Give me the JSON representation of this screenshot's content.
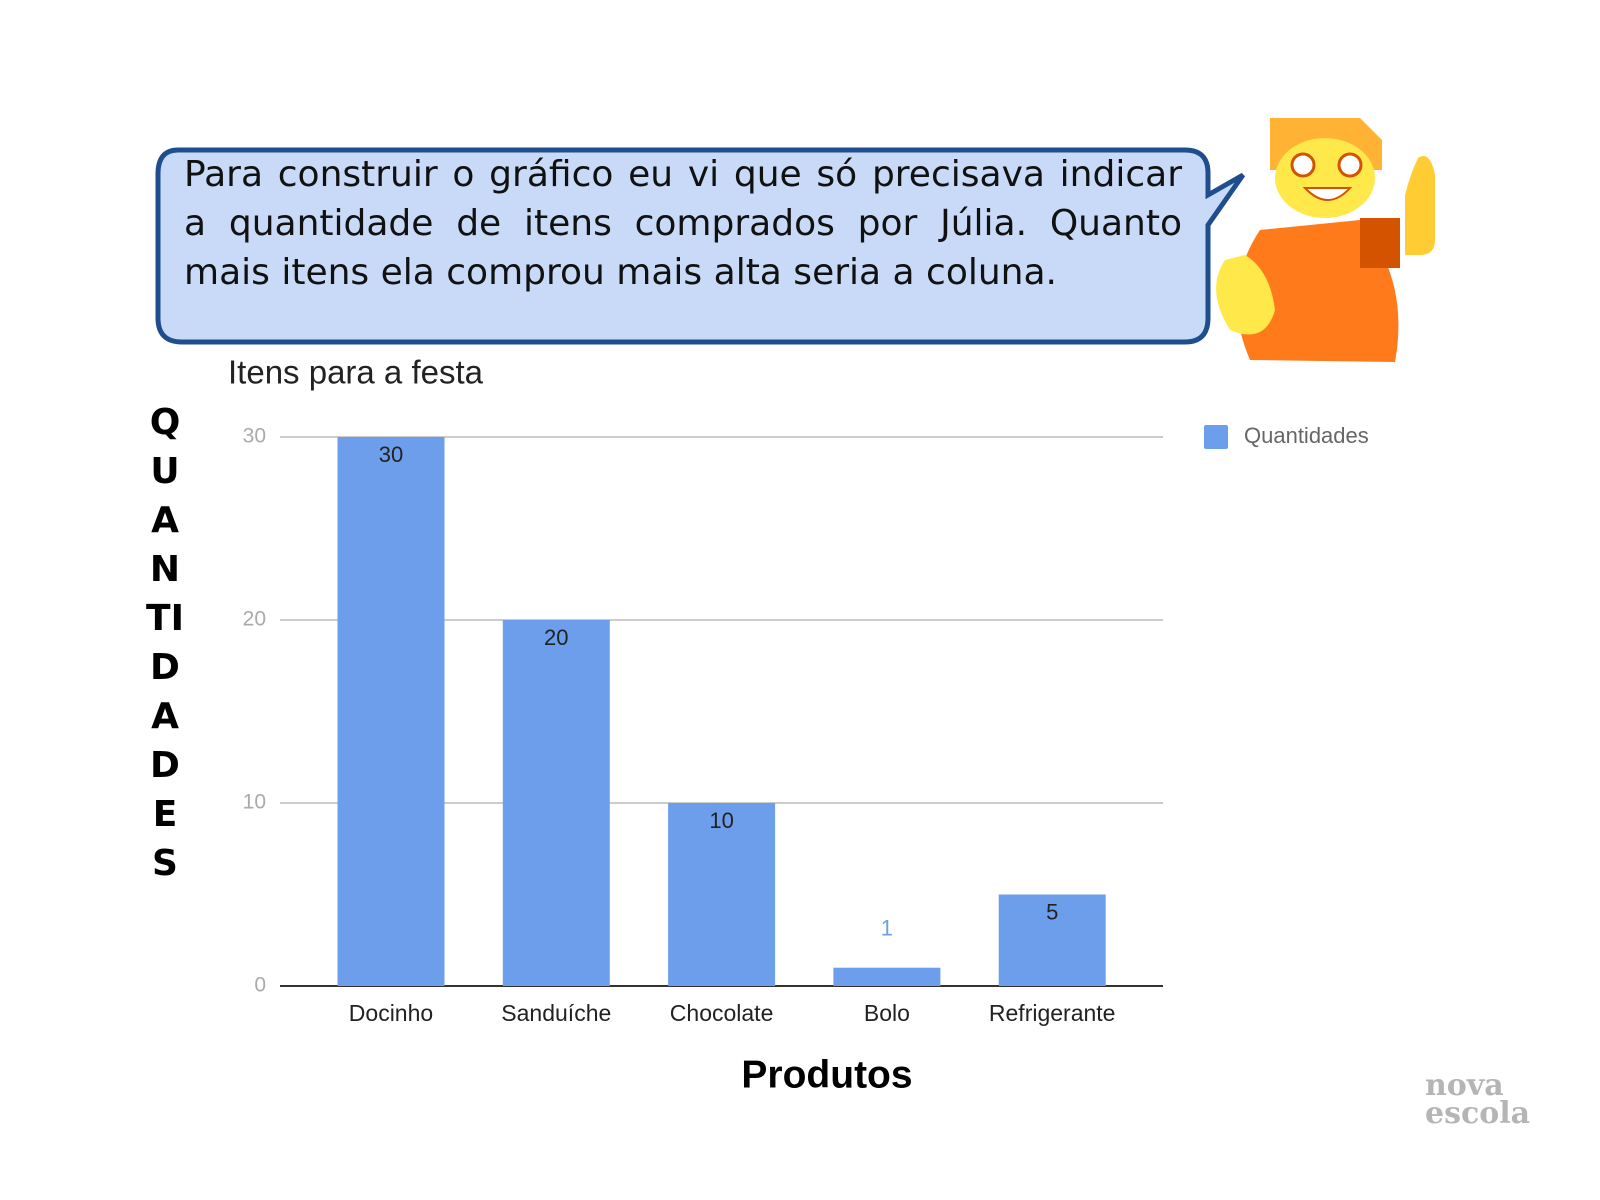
{
  "bubble_text": "Para construir o gráfico eu vi que só precisava indicar a quantidade de itens comprados por Júlia. Quanto mais itens ela comprou mais alta seria a coluna.",
  "logo": [
    "nova",
    "escola"
  ],
  "chart_data": {
    "type": "bar",
    "title": "Itens para a festa",
    "y_label": "QUANTIDADES",
    "x_label": "Produtos",
    "categories": [
      "Docinho",
      "Sanduíche",
      "Chocolate",
      "Bolo",
      "Refrigerante"
    ],
    "series": [
      {
        "name": "Quantidades",
        "color": "#6d9eeb",
        "values": [
          30,
          20,
          10,
          1,
          5
        ]
      }
    ],
    "ylim": [
      0,
      30
    ],
    "yticks": [
      0,
      10,
      20,
      30
    ],
    "grid": true,
    "legend": "right"
  }
}
